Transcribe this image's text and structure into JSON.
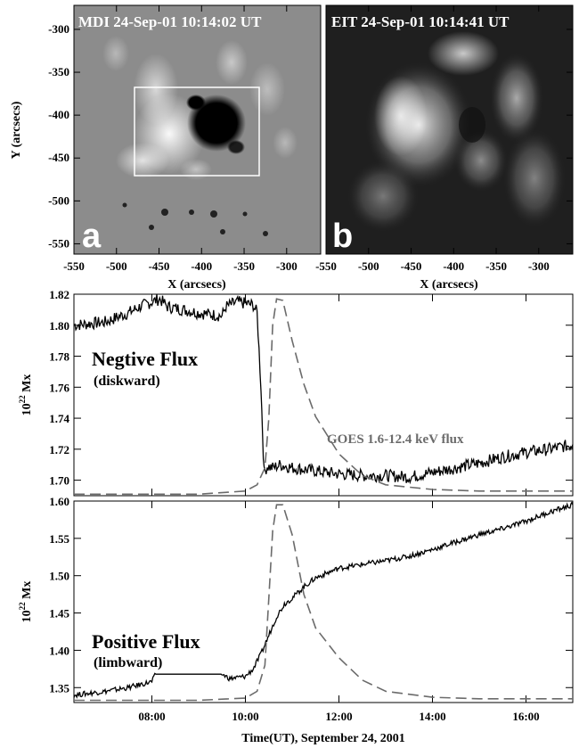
{
  "images": {
    "mdi": {
      "title": "MDI 24-Sep-01 10:14:02 UT",
      "letter": "a"
    },
    "eit": {
      "title": "EIT 24-Sep-01 10:14:41 UT",
      "letter": "b"
    },
    "x_label": "X (arcsecs)",
    "y_label": "Y (arcsecs)",
    "x_ticks": [
      "-550",
      "-500",
      "-450",
      "-400",
      "-350",
      "-300"
    ],
    "y_ticks": [
      "-300",
      "-350",
      "-400",
      "-450",
      "-500",
      "-550"
    ]
  },
  "chart_data": [
    {
      "type": "line",
      "ylabel": "10^22 Mx",
      "ylim": [
        1.69,
        1.82
      ],
      "yticks": [
        "1.70",
        "1.72",
        "1.74",
        "1.76",
        "1.78",
        "1.80",
        "1.82"
      ],
      "xlim": [
        "06:20",
        "17:00"
      ],
      "annotation": {
        "title": "Negtive Flux",
        "subtitle": "(diskward)"
      },
      "goes_label": "GOES 1.6-12.4 keV flux",
      "series": [
        {
          "style": "solid",
          "x": [
            "06:20",
            "07:00",
            "07:30",
            "07:45",
            "08:00",
            "08:10",
            "08:20",
            "09:00",
            "09:30",
            "09:35",
            "09:50",
            "10:10",
            "10:15",
            "10:20",
            "10:22",
            "10:24",
            "10:28",
            "10:35",
            "10:45",
            "11:00",
            "11:30",
            "12:00",
            "12:30",
            "13:00",
            "13:30",
            "14:00",
            "14:30",
            "15:00",
            "15:30",
            "16:00",
            "16:30",
            "17:00"
          ],
          "y": [
            1.8,
            1.802,
            1.808,
            1.812,
            1.815,
            1.817,
            1.812,
            1.808,
            1.806,
            1.812,
            1.815,
            1.813,
            1.808,
            1.76,
            1.73,
            1.705,
            1.709,
            1.708,
            1.71,
            1.708,
            1.706,
            1.704,
            1.703,
            1.703,
            1.702,
            1.705,
            1.708,
            1.711,
            1.715,
            1.718,
            1.72,
            1.723
          ]
        },
        {
          "style": "dashed",
          "x": [
            "06:20",
            "09:00",
            "10:00",
            "10:15",
            "10:25",
            "10:30",
            "10:35",
            "10:40",
            "10:48",
            "11:00",
            "11:15",
            "11:30",
            "12:00",
            "12:30",
            "13:00",
            "14:00",
            "15:00",
            "16:00",
            "17:00"
          ],
          "y": [
            1.691,
            1.691,
            1.693,
            1.697,
            1.708,
            1.74,
            1.8,
            1.817,
            1.816,
            1.79,
            1.762,
            1.741,
            1.717,
            1.703,
            1.697,
            1.694,
            1.693,
            1.693,
            1.693
          ]
        }
      ]
    },
    {
      "type": "line",
      "xlabel": "Time(UT), September 24, 2001",
      "ylabel": "10^22 Mx",
      "ylim": [
        1.33,
        1.6
      ],
      "yticks": [
        "1.35",
        "1.40",
        "1.45",
        "1.50",
        "1.55",
        "1.60"
      ],
      "xticks": [
        "08:00",
        "10:00",
        "12:00",
        "14:00",
        "16:00"
      ],
      "xlim": [
        "06:20",
        "17:00"
      ],
      "annotation": {
        "title": "Positive Flux",
        "subtitle": "(limbward)"
      },
      "series": [
        {
          "style": "solid",
          "x": [
            "06:20",
            "07:00",
            "07:30",
            "08:00",
            "08:05",
            "09:30",
            "09:40",
            "10:00",
            "10:10",
            "10:20",
            "10:30",
            "10:40",
            "10:50",
            "11:00",
            "11:15",
            "11:30",
            "12:00",
            "12:30",
            "13:00",
            "13:30",
            "14:00",
            "14:30",
            "15:00",
            "15:30",
            "16:00",
            "16:30",
            "17:00"
          ],
          "y": [
            1.34,
            1.345,
            1.35,
            1.358,
            1.368,
            1.368,
            1.362,
            1.365,
            1.375,
            1.395,
            1.42,
            1.445,
            1.462,
            1.47,
            1.485,
            1.497,
            1.51,
            1.515,
            1.52,
            1.526,
            1.535,
            1.545,
            1.555,
            1.563,
            1.573,
            1.585,
            1.595
          ]
        },
        {
          "style": "dashed",
          "x": [
            "06:20",
            "09:00",
            "10:00",
            "10:15",
            "10:25",
            "10:30",
            "10:35",
            "10:40",
            "10:48",
            "11:00",
            "11:15",
            "11:30",
            "12:00",
            "12:30",
            "13:00",
            "14:00",
            "15:00",
            "16:00",
            "17:00"
          ],
          "y": [
            1.333,
            1.333,
            1.336,
            1.345,
            1.38,
            1.47,
            1.56,
            1.595,
            1.595,
            1.555,
            1.475,
            1.43,
            1.39,
            1.36,
            1.345,
            1.337,
            1.335,
            1.335,
            1.335
          ]
        }
      ]
    }
  ]
}
